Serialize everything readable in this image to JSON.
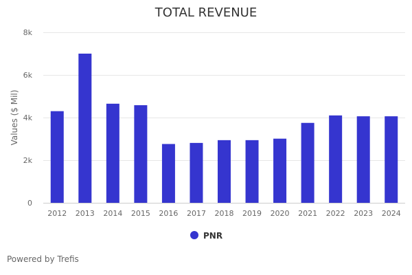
{
  "chart_data": {
    "type": "bar",
    "title": "TOTAL REVENUE",
    "xlabel": "",
    "ylabel": "Values ($ Mil)",
    "categories": [
      "2012",
      "2013",
      "2014",
      "2015",
      "2016",
      "2017",
      "2018",
      "2019",
      "2020",
      "2021",
      "2022",
      "2023",
      "2024"
    ],
    "series": [
      {
        "name": "PNR",
        "color": "#3535cf",
        "values": [
          4300,
          7000,
          4650,
          4580,
          2760,
          2810,
          2940,
          2940,
          3010,
          3750,
          4100,
          4060,
          4060
        ]
      }
    ],
    "ylim": [
      0,
      8000
    ],
    "yticks": [
      0,
      2000,
      4000,
      6000,
      8000
    ],
    "ytick_labels": [
      "0",
      "2k",
      "4k",
      "6k",
      "8k"
    ],
    "grid": true,
    "legend_position": "bottom-center"
  },
  "footer": {
    "credit": "Powered by Trefis"
  }
}
